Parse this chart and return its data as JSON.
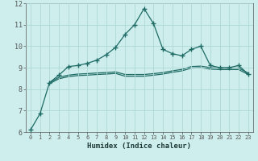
{
  "xlabel": "Humidex (Indice chaleur)",
  "ylabel": "",
  "background_color": "#ceeeed",
  "grid_color": "#aed8d5",
  "line_color": "#1e6b65",
  "xlim": [
    -0.5,
    23.5
  ],
  "ylim": [
    6,
    12
  ],
  "yticks": [
    6,
    7,
    8,
    9,
    10,
    11,
    12
  ],
  "xticks": [
    0,
    1,
    2,
    3,
    4,
    5,
    6,
    7,
    8,
    9,
    10,
    11,
    12,
    13,
    14,
    15,
    16,
    17,
    18,
    19,
    20,
    21,
    22,
    23
  ],
  "line1_x": [
    0,
    1,
    2,
    3,
    4,
    5,
    6,
    7,
    8,
    9,
    10,
    11,
    12,
    13,
    14,
    15,
    16,
    17,
    18,
    19,
    20,
    21,
    22,
    23
  ],
  "line1_y": [
    6.1,
    6.85,
    8.3,
    8.65,
    9.05,
    9.1,
    9.2,
    9.35,
    9.6,
    9.95,
    10.55,
    11.0,
    11.75,
    11.05,
    9.85,
    9.65,
    9.55,
    9.85,
    10.0,
    9.1,
    9.0,
    9.0,
    9.1,
    8.7
  ],
  "line2_x": [
    2,
    3,
    4,
    5,
    6,
    7,
    8,
    9,
    10,
    11,
    12,
    13,
    14,
    15,
    16,
    17,
    18,
    19,
    20,
    21,
    22,
    23
  ],
  "line2_y": [
    8.3,
    8.55,
    8.65,
    8.7,
    8.72,
    8.75,
    8.77,
    8.8,
    8.68,
    8.68,
    8.68,
    8.72,
    8.77,
    8.85,
    8.92,
    9.05,
    9.07,
    9.0,
    8.98,
    8.98,
    8.98,
    8.75
  ],
  "line3_x": [
    2,
    3,
    4,
    5,
    6,
    7,
    8,
    9,
    10,
    11,
    12,
    13,
    14,
    15,
    16,
    17,
    18,
    19,
    20,
    21,
    22,
    23
  ],
  "line3_y": [
    8.25,
    8.48,
    8.58,
    8.63,
    8.65,
    8.68,
    8.7,
    8.73,
    8.6,
    8.6,
    8.6,
    8.65,
    8.7,
    8.78,
    8.85,
    8.98,
    9.0,
    8.93,
    8.91,
    8.91,
    8.91,
    8.68
  ]
}
